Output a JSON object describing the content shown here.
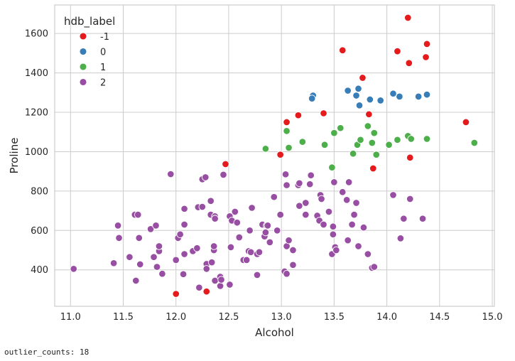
{
  "output": {
    "text": "outlier_counts: 18"
  },
  "chart_data": {
    "type": "scatter",
    "xlabel": "Alcohol",
    "ylabel": "Proline",
    "xlim": [
      10.85,
      15.02
    ],
    "ylim": [
      215,
      1745
    ],
    "xticks": [
      11.0,
      11.5,
      12.0,
      12.5,
      13.0,
      13.5,
      14.0,
      14.5,
      15.0
    ],
    "xtick_labels": [
      "11.0",
      "11.5",
      "12.0",
      "12.5",
      "13.0",
      "13.5",
      "14.0",
      "14.5",
      "15.0"
    ],
    "yticks": [
      400,
      600,
      800,
      1000,
      1200,
      1400,
      1600
    ],
    "ytick_labels": [
      "400",
      "600",
      "800",
      "1000",
      "1200",
      "1400",
      "1600"
    ],
    "grid": true,
    "legend": {
      "title": "hdb_label",
      "placement": "top-left"
    },
    "series": [
      {
        "name": "-1",
        "color": "#e41a1c",
        "points": [
          [
            14.2,
            1680
          ],
          [
            14.38,
            1547
          ],
          [
            14.1,
            1510
          ],
          [
            13.58,
            1515
          ],
          [
            14.37,
            1480
          ],
          [
            14.21,
            1450
          ],
          [
            13.77,
            1375
          ],
          [
            13.83,
            1190
          ],
          [
            13.4,
            1195
          ],
          [
            13.16,
            1185
          ],
          [
            13.05,
            1150
          ],
          [
            14.75,
            1150
          ],
          [
            12.99,
            985
          ],
          [
            14.22,
            970
          ],
          [
            12.47,
            937
          ],
          [
            13.87,
            915
          ],
          [
            12.0,
            278
          ],
          [
            12.29,
            290
          ]
        ]
      },
      {
        "name": "0",
        "color": "#377eb8",
        "points": [
          [
            13.3,
            1285
          ],
          [
            13.29,
            1270
          ],
          [
            13.63,
            1310
          ],
          [
            13.71,
            1285
          ],
          [
            13.73,
            1320
          ],
          [
            13.74,
            1235
          ],
          [
            13.84,
            1265
          ],
          [
            13.94,
            1260
          ],
          [
            14.06,
            1295
          ],
          [
            14.12,
            1280
          ],
          [
            14.3,
            1280
          ],
          [
            14.38,
            1290
          ]
        ]
      },
      {
        "name": "1",
        "color": "#4daf4a",
        "points": [
          [
            12.85,
            1015
          ],
          [
            13.05,
            1105
          ],
          [
            13.07,
            1020
          ],
          [
            13.2,
            1050
          ],
          [
            13.41,
            1035
          ],
          [
            13.48,
            920
          ],
          [
            13.5,
            1095
          ],
          [
            13.56,
            1120
          ],
          [
            13.68,
            990
          ],
          [
            13.72,
            1035
          ],
          [
            13.75,
            1060
          ],
          [
            13.82,
            1130
          ],
          [
            13.86,
            1045
          ],
          [
            13.88,
            1095
          ],
          [
            13.9,
            985
          ],
          [
            14.02,
            1035
          ],
          [
            14.1,
            1060
          ],
          [
            14.2,
            1080
          ],
          [
            14.23,
            1065
          ],
          [
            14.38,
            1065
          ],
          [
            14.83,
            1045
          ]
        ]
      },
      {
        "name": "2",
        "color": "#984ea3",
        "points": [
          [
            11.03,
            405
          ],
          [
            11.41,
            434
          ],
          [
            11.45,
            625
          ],
          [
            11.46,
            562
          ],
          [
            11.56,
            465
          ],
          [
            11.61,
            680
          ],
          [
            11.62,
            345
          ],
          [
            11.64,
            680
          ],
          [
            11.65,
            562
          ],
          [
            11.66,
            428
          ],
          [
            11.76,
            607
          ],
          [
            11.79,
            465
          ],
          [
            11.81,
            625
          ],
          [
            11.82,
            415
          ],
          [
            11.84,
            495
          ],
          [
            11.84,
            520
          ],
          [
            11.87,
            380
          ],
          [
            11.95,
            886
          ],
          [
            12.0,
            450
          ],
          [
            12.02,
            562
          ],
          [
            12.04,
            580
          ],
          [
            12.07,
            378
          ],
          [
            12.08,
            630
          ],
          [
            12.08,
            710
          ],
          [
            12.08,
            480
          ],
          [
            12.16,
            495
          ],
          [
            12.2,
            510
          ],
          [
            12.21,
            718
          ],
          [
            12.22,
            310
          ],
          [
            12.25,
            720
          ],
          [
            12.25,
            860
          ],
          [
            12.28,
            870
          ],
          [
            12.29,
            430
          ],
          [
            12.29,
            405
          ],
          [
            12.33,
            680
          ],
          [
            12.33,
            750
          ],
          [
            12.34,
            438
          ],
          [
            12.36,
            500
          ],
          [
            12.36,
            520
          ],
          [
            12.37,
            672
          ],
          [
            12.37,
            660
          ],
          [
            12.37,
            345
          ],
          [
            12.42,
            365
          ],
          [
            12.42,
            318
          ],
          [
            12.43,
            350
          ],
          [
            12.45,
            883
          ],
          [
            12.51,
            325
          ],
          [
            12.51,
            672
          ],
          [
            12.52,
            515
          ],
          [
            12.53,
            650
          ],
          [
            12.56,
            695
          ],
          [
            12.58,
            640
          ],
          [
            12.6,
            565
          ],
          [
            12.64,
            450
          ],
          [
            12.67,
            450
          ],
          [
            12.69,
            495
          ],
          [
            12.7,
            600
          ],
          [
            12.71,
            490
          ],
          [
            12.72,
            715
          ],
          [
            12.77,
            374
          ],
          [
            12.77,
            480
          ],
          [
            12.79,
            490
          ],
          [
            12.82,
            630
          ],
          [
            12.84,
            570
          ],
          [
            12.85,
            590
          ],
          [
            12.86,
            625
          ],
          [
            12.87,
            625
          ],
          [
            12.89,
            540
          ],
          [
            12.93,
            770
          ],
          [
            12.96,
            600
          ],
          [
            12.99,
            680
          ],
          [
            13.03,
            392
          ],
          [
            13.04,
            885
          ],
          [
            13.05,
            830
          ],
          [
            13.05,
            380
          ],
          [
            13.05,
            520
          ],
          [
            13.07,
            550
          ],
          [
            13.11,
            500
          ],
          [
            13.11,
            425
          ],
          [
            13.16,
            830
          ],
          [
            13.17,
            840
          ],
          [
            13.17,
            725
          ],
          [
            13.23,
            740
          ],
          [
            13.23,
            680
          ],
          [
            13.27,
            835
          ],
          [
            13.28,
            880
          ],
          [
            13.34,
            675
          ],
          [
            13.36,
            650
          ],
          [
            13.37,
            780
          ],
          [
            13.38,
            760
          ],
          [
            13.4,
            630
          ],
          [
            13.45,
            695
          ],
          [
            13.48,
            480
          ],
          [
            13.49,
            620
          ],
          [
            13.49,
            580
          ],
          [
            13.5,
            845
          ],
          [
            13.51,
            515
          ],
          [
            13.52,
            500
          ],
          [
            13.58,
            795
          ],
          [
            13.62,
            755
          ],
          [
            13.63,
            550
          ],
          [
            13.64,
            845
          ],
          [
            13.67,
            630
          ],
          [
            13.69,
            680
          ],
          [
            13.71,
            740
          ],
          [
            13.73,
            520
          ],
          [
            13.78,
            615
          ],
          [
            13.82,
            480
          ],
          [
            13.86,
            410
          ],
          [
            13.88,
            415
          ],
          [
            14.06,
            780
          ],
          [
            14.13,
            560
          ],
          [
            14.16,
            660
          ],
          [
            14.22,
            760
          ],
          [
            14.34,
            660
          ]
        ]
      }
    ]
  }
}
